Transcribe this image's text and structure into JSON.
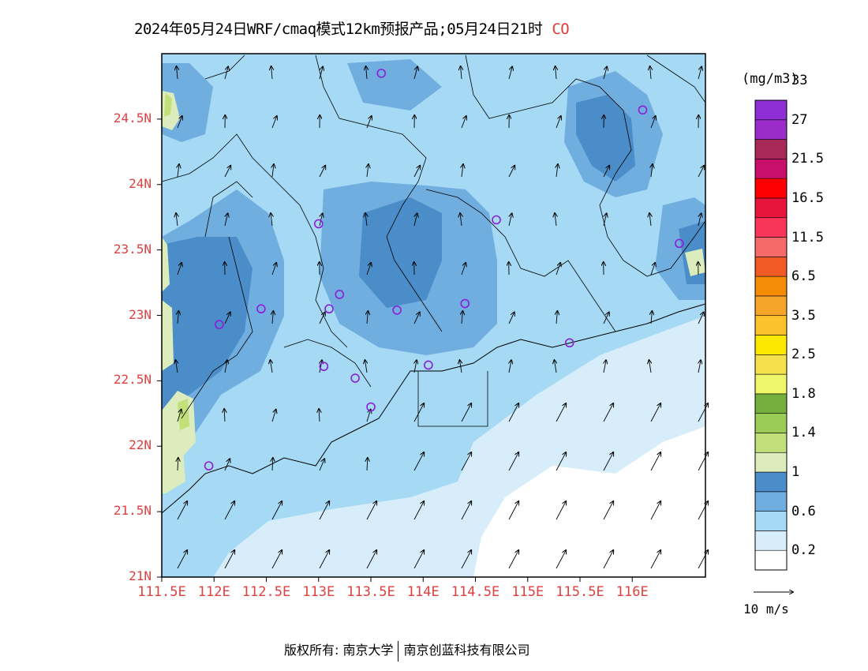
{
  "title": {
    "text": "2024年05月24日WRF/cmaq模式12km预报产品;05月24日21时",
    "species": "CO"
  },
  "map": {
    "lon_range": [
      111.5,
      116.7
    ],
    "lat_range": [
      21.0,
      25.0
    ],
    "lat_ticks": [
      {
        "value": 24.5,
        "label": "24.5N"
      },
      {
        "value": 24.0,
        "label": "24N"
      },
      {
        "value": 23.5,
        "label": "23.5N"
      },
      {
        "value": 23.0,
        "label": "23N"
      },
      {
        "value": 22.5,
        "label": "22.5N"
      },
      {
        "value": 22.0,
        "label": "22N"
      },
      {
        "value": 21.5,
        "label": "21.5N"
      },
      {
        "value": 21.0,
        "label": "21N"
      }
    ],
    "lon_ticks": [
      {
        "value": 111.5,
        "label": "111.5E"
      },
      {
        "value": 112.0,
        "label": "112E"
      },
      {
        "value": 112.5,
        "label": "112.5E"
      },
      {
        "value": 113.0,
        "label": "113E"
      },
      {
        "value": 113.5,
        "label": "113.5E"
      },
      {
        "value": 114.0,
        "label": "114E"
      },
      {
        "value": 114.5,
        "label": "114.5E"
      },
      {
        "value": 115.0,
        "label": "115E"
      },
      {
        "value": 115.5,
        "label": "115.5E"
      },
      {
        "value": 116.0,
        "label": "116E"
      }
    ],
    "stations": [
      {
        "lon": 113.6,
        "lat": 24.85
      },
      {
        "lon": 116.1,
        "lat": 24.57
      },
      {
        "lon": 113.0,
        "lat": 23.7
      },
      {
        "lon": 114.7,
        "lat": 23.73
      },
      {
        "lon": 116.45,
        "lat": 23.55
      },
      {
        "lon": 112.45,
        "lat": 23.05
      },
      {
        "lon": 113.1,
        "lat": 23.05
      },
      {
        "lon": 113.2,
        "lat": 23.16
      },
      {
        "lon": 113.75,
        "lat": 23.04
      },
      {
        "lon": 114.4,
        "lat": 23.09
      },
      {
        "lon": 112.05,
        "lat": 22.93
      },
      {
        "lon": 115.4,
        "lat": 22.79
      },
      {
        "lon": 113.05,
        "lat": 22.61
      },
      {
        "lon": 113.35,
        "lat": 22.52
      },
      {
        "lon": 114.05,
        "lat": 22.62
      },
      {
        "lon": 113.5,
        "lat": 22.3
      },
      {
        "lon": 111.95,
        "lat": 21.85
      }
    ],
    "wind": {
      "direction": "south-southwest",
      "speed_note": "onshore flow"
    }
  },
  "colorbar": {
    "unit": "(mg/m3)",
    "colors": [
      "#ffffff",
      "#d7eefa",
      "#a5d9f4",
      "#70aee0",
      "#4a8dc8",
      "#dcecbc",
      "#c1e07a",
      "#9acc56",
      "#75b03e",
      "#eef66a",
      "#f4e04a",
      "#fce800",
      "#fac22c",
      "#f7a42a",
      "#f68b06",
      "#f15a24",
      "#f76a6a",
      "#f7365a",
      "#e8143c",
      "#ff0000",
      "#c8106a",
      "#a82858",
      "#9c2cc8",
      "#8c2ed4"
    ],
    "labels": [
      "0.2",
      "0.6",
      "1",
      "1.4",
      "1.8",
      "2.5",
      "3.5",
      "6.5",
      "11.5",
      "16.5",
      "21.5",
      "27",
      "33"
    ]
  },
  "reference_vector": {
    "label": "10 m/s"
  },
  "copyright": {
    "prefix": "版权所有: 南京大学",
    "suffix": "南京创蓝科技有限公司"
  }
}
